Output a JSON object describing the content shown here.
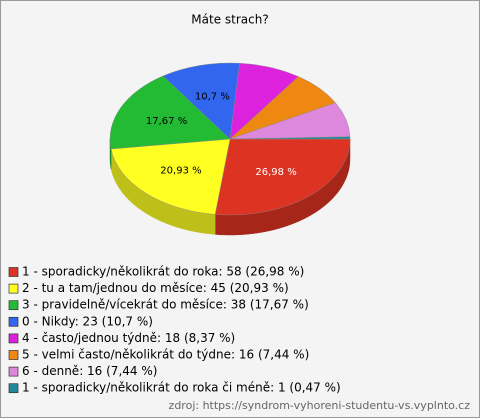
{
  "chart_data": {
    "type": "pie",
    "title": "Máte strach?",
    "categories": [
      "1 - sporadicky/několikrát do roka: 58 (26,98 %)",
      "2 - tu a tam/jednou do měsíce: 45 (20,93 %)",
      "3 - pravidelně/vícekrát do měsíce: 38 (17,67 %)",
      "0 - Nikdy: 23 (10,7 %)",
      "4 - často/jednou týdně: 18 (8,37 %)",
      "5 - velmi často/několikrát do týdne: 16 (7,44 %)",
      "6 - denně: 16 (7,44 %)",
      "1 - sporadicky/několikrát do roka či méně: 1 (0,47 %)"
    ],
    "values": [
      26.98,
      20.93,
      17.67,
      10.7,
      8.37,
      7.44,
      7.44,
      0.47
    ],
    "value_labels": [
      "26,98 %",
      "20,93 %",
      "17,67 %",
      "10,7 %",
      null,
      null,
      null,
      null
    ],
    "colors": [
      "#dd3322",
      "#ffff22",
      "#22bb33",
      "#3366ee",
      "#dd22dd",
      "#ee8811",
      "#dd88dd",
      "#228899"
    ],
    "source": "zdroj: https://syndrom-vyhoreni-studentu-vs.vyplnto.cz"
  }
}
